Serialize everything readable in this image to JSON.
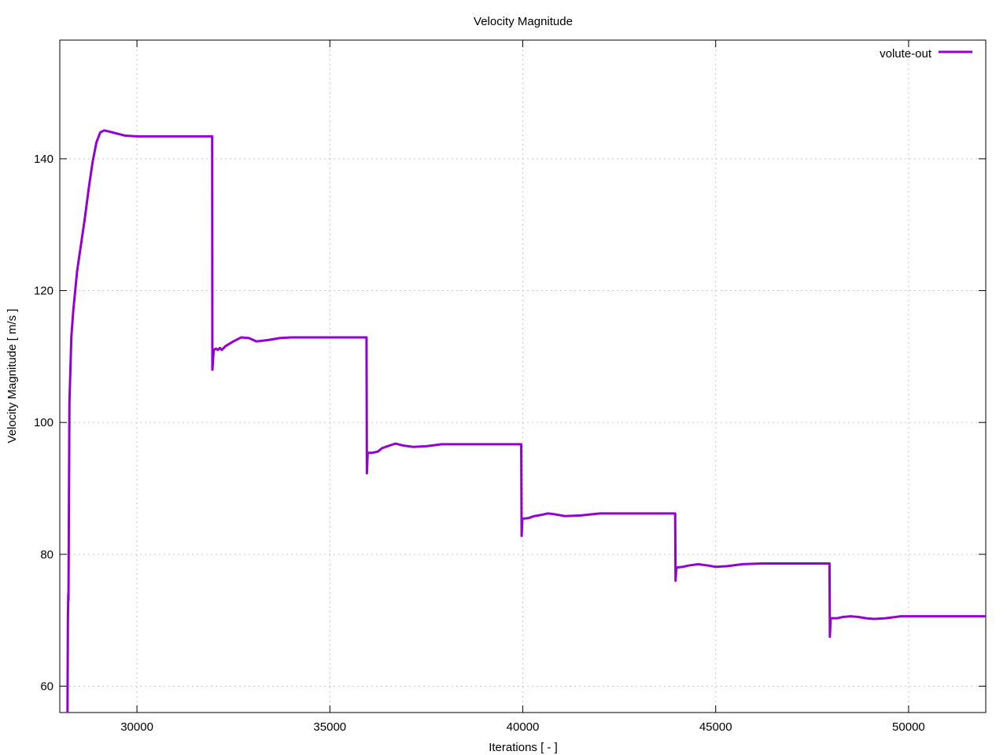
{
  "chart_data": {
    "type": "line",
    "title": "Velocity Magnitude",
    "xlabel": "Iterations [ - ]",
    "ylabel": "Velocity Magnitude [ m/s ]",
    "xlim": [
      28000,
      52000
    ],
    "ylim": [
      56,
      158
    ],
    "xticks": [
      30000,
      35000,
      40000,
      45000,
      50000
    ],
    "yticks": [
      60,
      80,
      100,
      120,
      140
    ],
    "grid": true,
    "legend_position": "top-right",
    "series": [
      {
        "name": "volute-out",
        "color": "#9400d3",
        "points": [
          [
            28200,
            56
          ],
          [
            28210,
            70
          ],
          [
            28220,
            74
          ],
          [
            28225,
            73
          ],
          [
            28250,
            103
          ],
          [
            28300,
            113
          ],
          [
            28350,
            117
          ],
          [
            28400,
            120
          ],
          [
            28450,
            123
          ],
          [
            28550,
            127
          ],
          [
            28650,
            131
          ],
          [
            28750,
            135.5
          ],
          [
            28850,
            139.5
          ],
          [
            28950,
            142.5
          ],
          [
            29050,
            144
          ],
          [
            29150,
            144.3
          ],
          [
            29300,
            144.1
          ],
          [
            29500,
            143.8
          ],
          [
            29700,
            143.5
          ],
          [
            30000,
            143.4
          ],
          [
            31000,
            143.4
          ],
          [
            31950,
            143.4
          ],
          [
            31955,
            108
          ],
          [
            31990,
            111
          ],
          [
            32050,
            111.2
          ],
          [
            32100,
            111
          ],
          [
            32150,
            111.3
          ],
          [
            32200,
            111
          ],
          [
            32300,
            111.6
          ],
          [
            32500,
            112.3
          ],
          [
            32700,
            112.9
          ],
          [
            32900,
            112.8
          ],
          [
            33100,
            112.3
          ],
          [
            33400,
            112.5
          ],
          [
            33700,
            112.8
          ],
          [
            34000,
            112.9
          ],
          [
            35950,
            112.9
          ],
          [
            35960,
            92.3
          ],
          [
            35980,
            95.4
          ],
          [
            36100,
            95.4
          ],
          [
            36250,
            95.6
          ],
          [
            36350,
            96.1
          ],
          [
            36500,
            96.4
          ],
          [
            36700,
            96.8
          ],
          [
            36900,
            96.5
          ],
          [
            37150,
            96.3
          ],
          [
            37500,
            96.4
          ],
          [
            37900,
            96.7
          ],
          [
            38500,
            96.7
          ],
          [
            39960,
            96.7
          ],
          [
            39970,
            82.8
          ],
          [
            39990,
            85.4
          ],
          [
            40150,
            85.5
          ],
          [
            40300,
            85.8
          ],
          [
            40500,
            86
          ],
          [
            40650,
            86.2
          ],
          [
            40800,
            86.1
          ],
          [
            41100,
            85.8
          ],
          [
            41500,
            85.9
          ],
          [
            42000,
            86.2
          ],
          [
            43950,
            86.2
          ],
          [
            43960,
            76
          ],
          [
            43980,
            78
          ],
          [
            44150,
            78.1
          ],
          [
            44300,
            78.3
          ],
          [
            44550,
            78.5
          ],
          [
            44800,
            78.3
          ],
          [
            45000,
            78.1
          ],
          [
            45300,
            78.2
          ],
          [
            45700,
            78.5
          ],
          [
            46200,
            78.6
          ],
          [
            47950,
            78.6
          ],
          [
            47960,
            67.5
          ],
          [
            47980,
            70.3
          ],
          [
            48150,
            70.3
          ],
          [
            48300,
            70.5
          ],
          [
            48500,
            70.6
          ],
          [
            48700,
            70.5
          ],
          [
            48900,
            70.3
          ],
          [
            49100,
            70.2
          ],
          [
            49400,
            70.3
          ],
          [
            49800,
            70.6
          ],
          [
            50300,
            70.6
          ],
          [
            51000,
            70.6
          ],
          [
            52000,
            70.6
          ]
        ]
      }
    ]
  }
}
